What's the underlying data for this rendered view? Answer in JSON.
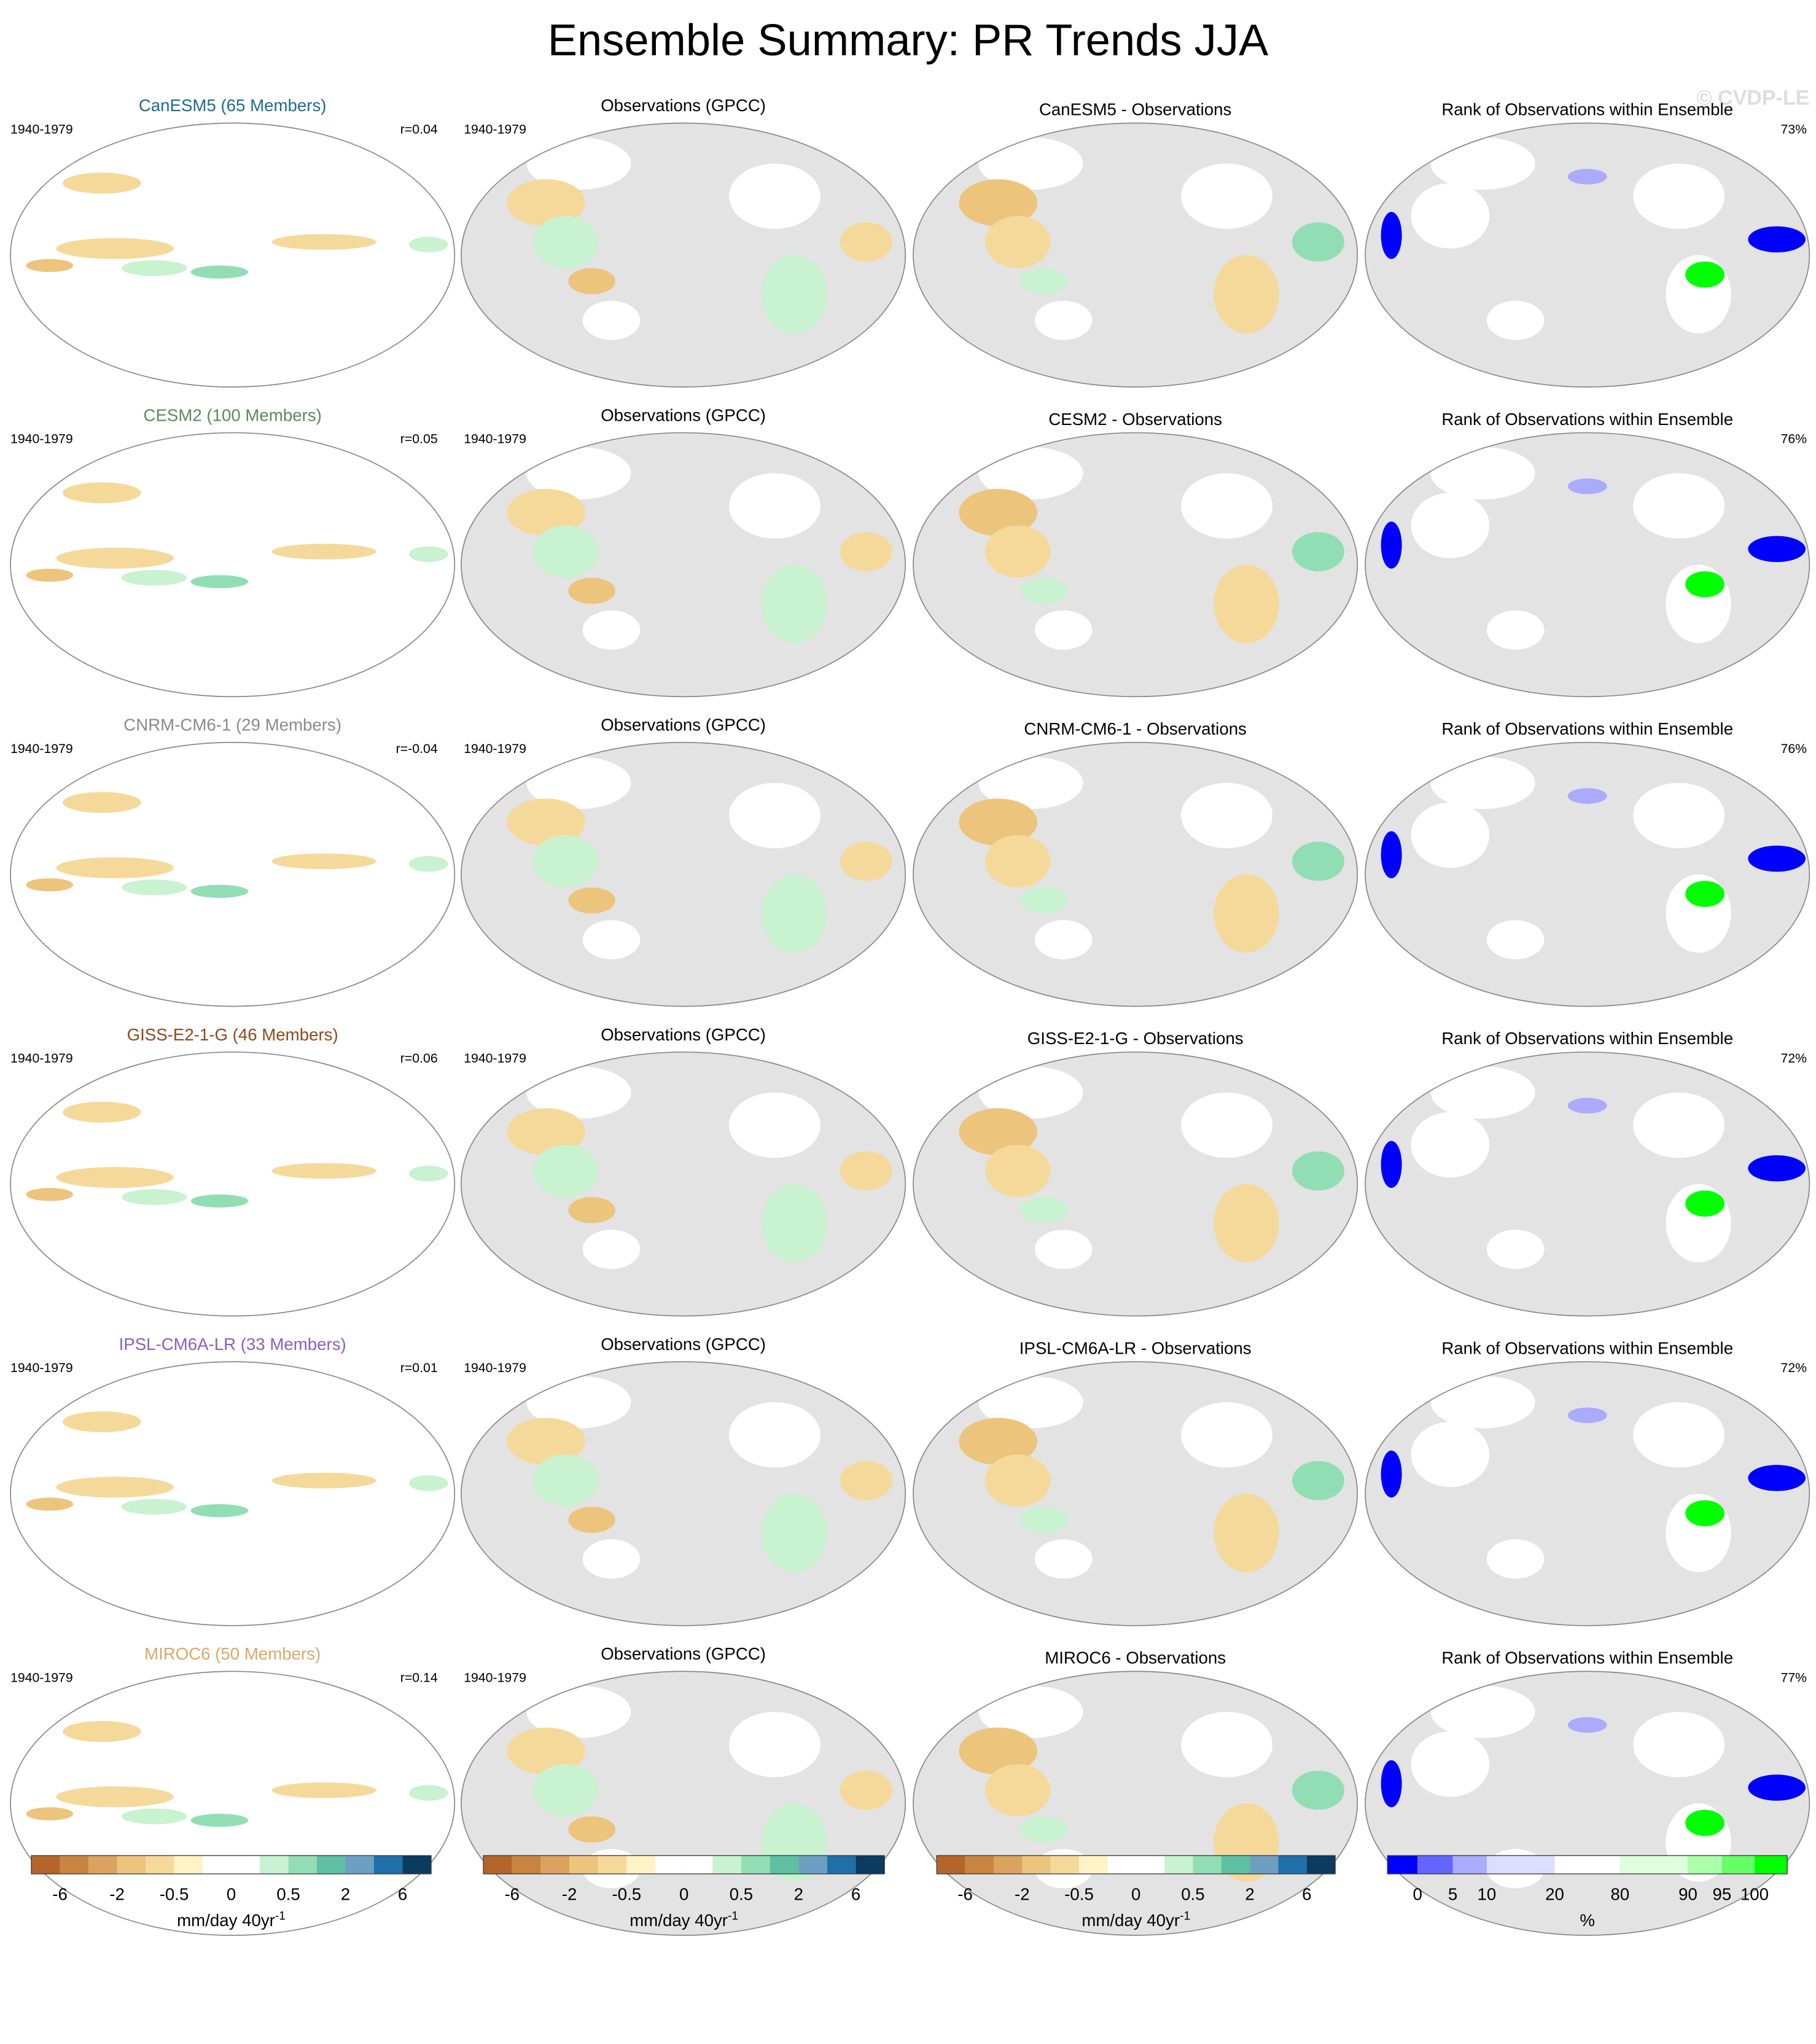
{
  "title": "Ensemble Summary: PR Trends JJA",
  "watermark": "© CVDP-LE",
  "rows": [
    {
      "model_title": "CanESM5 (65 Members)",
      "model_color": "#1a6e8e",
      "period": "1940-1979",
      "r": "r=0.04",
      "obs_title": "Observations (GPCC)",
      "obs_period": "1940-1979",
      "diff_title": "CanESM5 - Observations",
      "rank_title": "Rank of Observations within Ensemble",
      "rank_pct": "73%"
    },
    {
      "model_title": "CESM2 (100 Members)",
      "model_color": "#5b8a5b",
      "period": "1940-1979",
      "r": "r=0.05",
      "obs_title": "Observations (GPCC)",
      "obs_period": "1940-1979",
      "diff_title": "CESM2 - Observations",
      "rank_title": "Rank of Observations within Ensemble",
      "rank_pct": "76%"
    },
    {
      "model_title": "CNRM-CM6-1 (29 Members)",
      "model_color": "#8a8a8a",
      "period": "1940-1979",
      "r": "r=-0.04",
      "obs_title": "Observations (GPCC)",
      "obs_period": "1940-1979",
      "diff_title": "CNRM-CM6-1 - Observations",
      "rank_title": "Rank of Observations within Ensemble",
      "rank_pct": "76%"
    },
    {
      "model_title": "GISS-E2-1-G (46 Members)",
      "model_color": "#8c4a1c",
      "period": "1940-1979",
      "r": "r=0.06",
      "obs_title": "Observations (GPCC)",
      "obs_period": "1940-1979",
      "diff_title": "GISS-E2-1-G - Observations",
      "rank_title": "Rank of Observations within Ensemble",
      "rank_pct": "72%"
    },
    {
      "model_title": "IPSL-CM6A-LR (33 Members)",
      "model_color": "#8a5fc0",
      "period": "1940-1979",
      "r": "r=0.01",
      "obs_title": "Observations (GPCC)",
      "obs_period": "1940-1979",
      "diff_title": "IPSL-CM6A-LR - Observations",
      "rank_title": "Rank of Observations within Ensemble",
      "rank_pct": "72%"
    },
    {
      "model_title": "MIROC6 (50 Members)",
      "model_color": "#d9a86c",
      "period": "1940-1979",
      "r": "r=0.14",
      "obs_title": "Observations (GPCC)",
      "obs_period": "1940-1979",
      "diff_title": "MIROC6 - Observations",
      "rank_title": "Rank of Observations within Ensemble",
      "rank_pct": "77%"
    }
  ],
  "colorbars": [
    {
      "colors": [
        "#b5652a",
        "#c9843f",
        "#dba35e",
        "#ecc47c",
        "#f5d99a",
        "#fef3c4",
        "#ffffff",
        "#ffffff",
        "#c9f2d0",
        "#92deb4",
        "#5ebfa2",
        "#6d9fc3",
        "#1f6fa8",
        "#0b3b5e"
      ],
      "labels": [
        "-6",
        "-2",
        "-0.5",
        "0",
        "0.5",
        "2",
        "6"
      ],
      "unit": "mm/day 40yr",
      "unit_sup": "-1"
    },
    {
      "colors": [
        "#b5652a",
        "#c9843f",
        "#dba35e",
        "#ecc47c",
        "#f5d99a",
        "#fef3c4",
        "#ffffff",
        "#ffffff",
        "#c9f2d0",
        "#92deb4",
        "#5ebfa2",
        "#6d9fc3",
        "#1f6fa8",
        "#0b3b5e"
      ],
      "labels": [
        "-6",
        "-2",
        "-0.5",
        "0",
        "0.5",
        "2",
        "6"
      ],
      "unit": "mm/day 40yr",
      "unit_sup": "-1"
    },
    {
      "colors": [
        "#b5652a",
        "#c9843f",
        "#dba35e",
        "#ecc47c",
        "#f5d99a",
        "#fef3c4",
        "#ffffff",
        "#ffffff",
        "#c9f2d0",
        "#92deb4",
        "#5ebfa2",
        "#6d9fc3",
        "#1f6fa8",
        "#0b3b5e"
      ],
      "labels": [
        "-6",
        "-2",
        "-0.5",
        "0",
        "0.5",
        "2",
        "6"
      ],
      "unit": "mm/day 40yr",
      "unit_sup": "-1"
    },
    {
      "colors": [
        "#0000ff",
        "#6464ff",
        "#aaaaff",
        "#ddddff",
        "#ffffff",
        "#ddffdd",
        "#aaffaa",
        "#66ff66",
        "#00ff00"
      ],
      "labels": [
        "0",
        "5",
        "10",
        "20",
        "80",
        "90",
        "95",
        "100"
      ],
      "unit": "%"
    }
  ]
}
